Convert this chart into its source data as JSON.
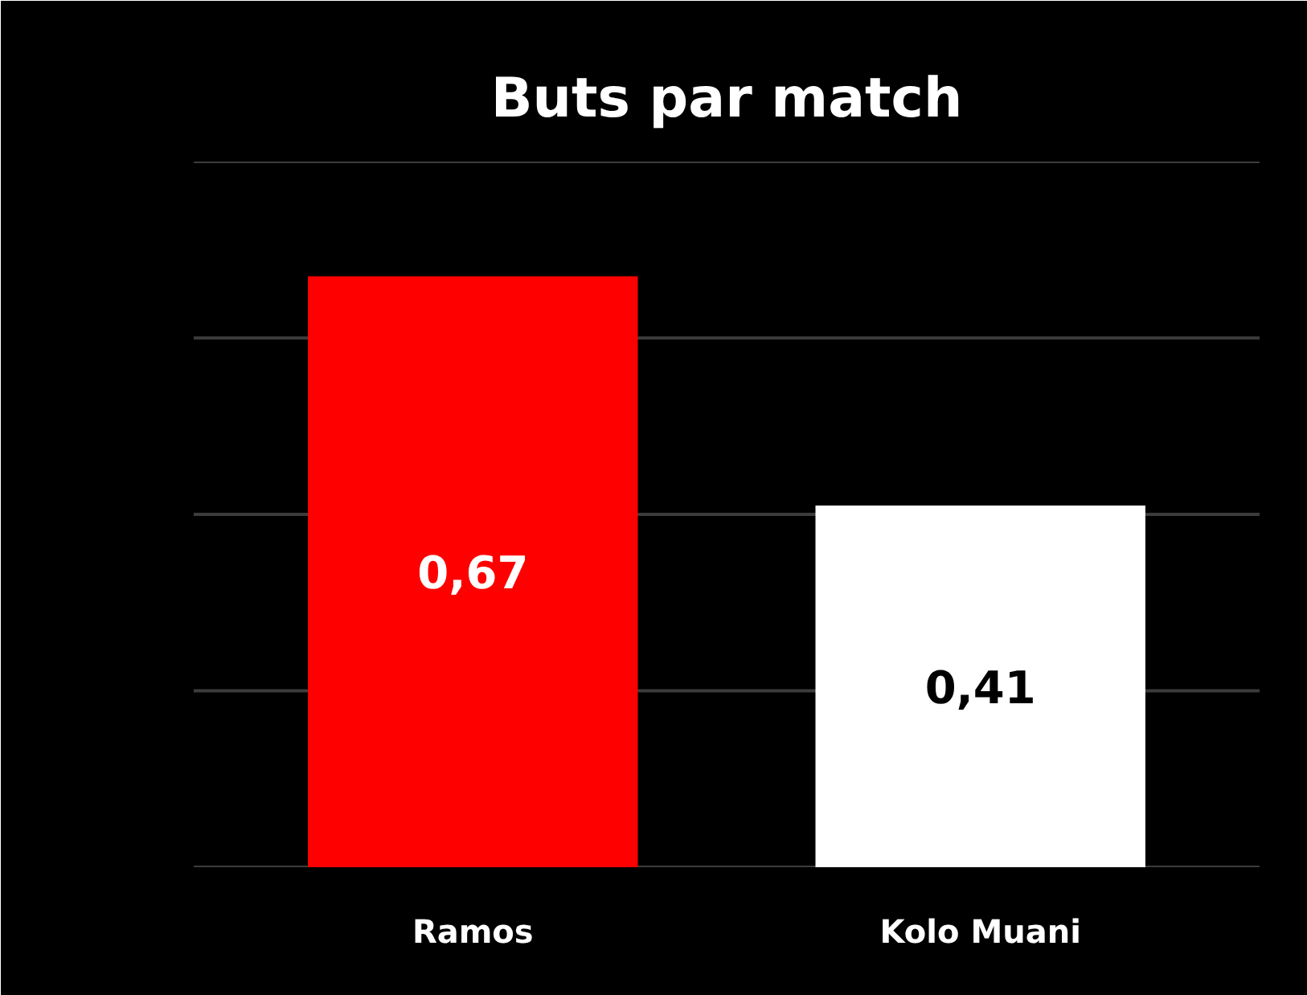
{
  "chart_data": {
    "type": "bar",
    "title": "Buts par match",
    "categories": [
      "Ramos",
      "Kolo Muani"
    ],
    "values": [
      0.67,
      0.41
    ],
    "colors": [
      "#ff0000",
      "#ffffff"
    ],
    "value_labels": [
      "0,67",
      "0,41"
    ],
    "ylim": [
      0,
      0.8
    ],
    "yticks": [
      {
        "value": 0,
        "label": null
      },
      {
        "value": 0.2,
        "label": null
      },
      {
        "value": 0.4,
        "label": null
      },
      {
        "value": 0.6,
        "label": null
      },
      {
        "value": 0.8,
        "label": null
      }
    ],
    "grid": "y",
    "tick_labels": "x"
  }
}
